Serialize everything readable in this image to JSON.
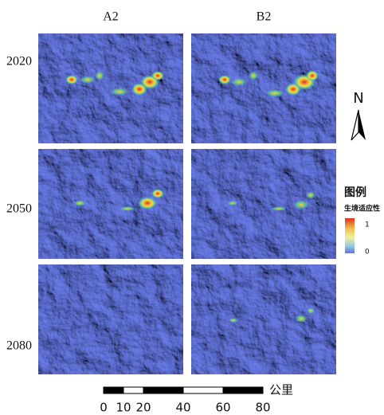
{
  "columns": [
    "A2",
    "B2"
  ],
  "rows": [
    "2020",
    "2050",
    "2080"
  ],
  "north_arrow": "N",
  "legend": {
    "title": "图例",
    "subtitle": "生境适应性",
    "max": 1,
    "min": 0
  },
  "scale_bar": {
    "labels": [
      0,
      10,
      20,
      40,
      60,
      80
    ],
    "unit": "公里"
  }
}
